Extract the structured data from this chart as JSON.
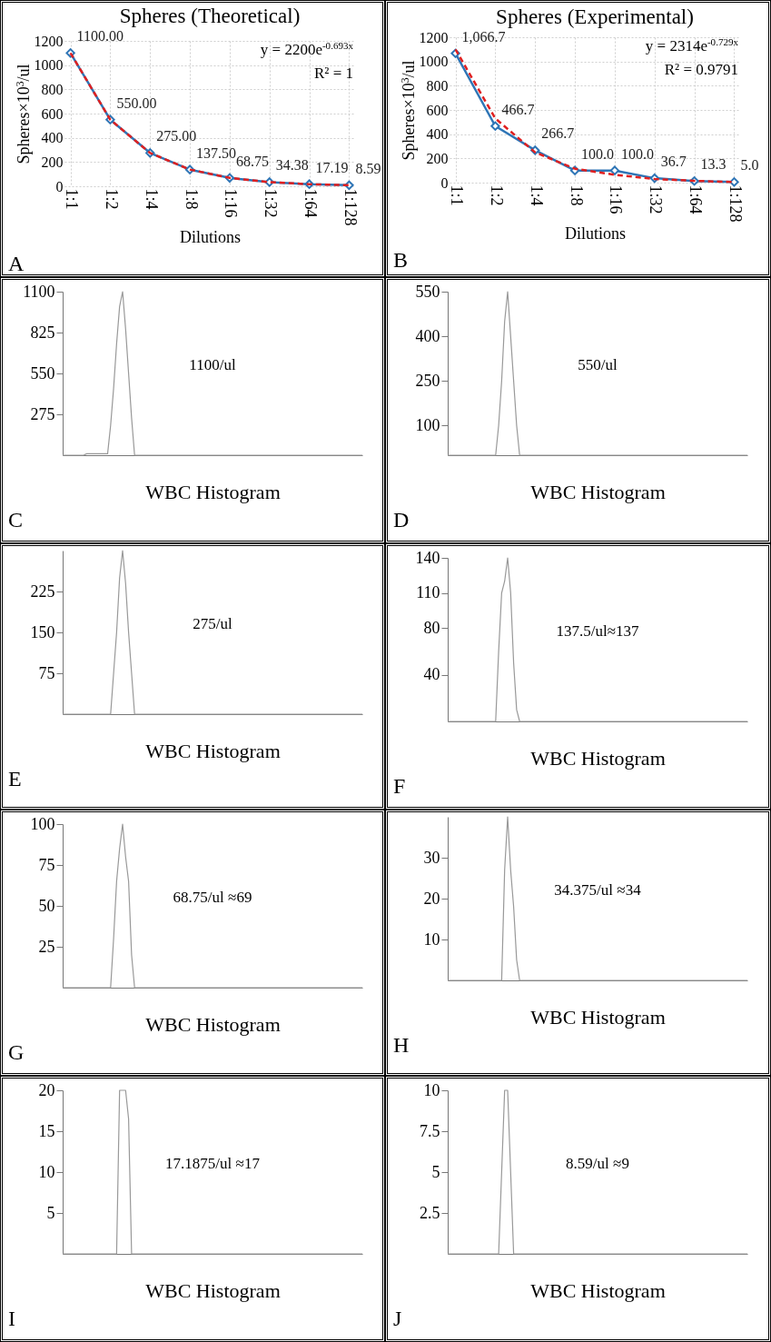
{
  "chart_data": [
    {
      "type": "line",
      "title": "Spheres (Theoretical)",
      "xlabel": "Dilutions",
      "ylabel": "Spheres×10$^{3}$/ul",
      "categories": [
        "1:1",
        "1:2",
        "1:4",
        "1:8",
        "1:16",
        "1:32",
        "1:64",
        "1:128"
      ],
      "ylim": [
        0,
        1200
      ],
      "yticks": [
        0,
        200,
        400,
        600,
        800,
        1000,
        1200
      ],
      "grid": true,
      "series": [
        {
          "color": "#2e75b6",
          "marker": "diamond",
          "line_style": "solid",
          "values": [
            1100,
            550,
            275,
            137.5,
            68.75,
            34.38,
            17.19,
            8.59
          ],
          "value_labels": [
            "1100.00",
            "550.00",
            "275.00",
            "137.50",
            "68.75",
            "34.38",
            "17.19",
            "8.59"
          ]
        },
        {
          "color": "#e02020",
          "marker": "none",
          "line_style": "dashed",
          "values": [
            1100,
            550,
            275,
            138,
            69,
            34,
            17,
            9
          ]
        }
      ],
      "annotations": [
        "y = 2200e$^{-0.693x}$",
        "R² = 1",
        "A"
      ]
    },
    {
      "type": "line",
      "title": "Spheres (Experimental)",
      "xlabel": "Dilutions",
      "ylabel": "Spheres×10$^{3}$/ul",
      "categories": [
        "1:1",
        "1:2",
        "1:4",
        "1:8",
        "1:16",
        "1:32",
        "1:64",
        "1:128"
      ],
      "ylim": [
        0,
        1200
      ],
      "yticks": [
        0,
        200,
        400,
        600,
        800,
        1000,
        1200
      ],
      "grid": true,
      "series": [
        {
          "color": "#2e75b6",
          "marker": "diamond",
          "line_style": "solid",
          "values": [
            1066.7,
            466.7,
            266.7,
            100.0,
            100.0,
            36.7,
            13.3,
            5.0
          ],
          "value_labels": [
            "1,066.7",
            "466.7",
            "266.7",
            "100.0",
            "100.0",
            "36.7",
            "13.3",
            "5.0"
          ]
        },
        {
          "color": "#e02020",
          "marker": "none",
          "line_style": "dashed",
          "values": [
            1100,
            530,
            250,
            115,
            65,
            30,
            15,
            5
          ]
        }
      ],
      "annotations": [
        "y = 2314e$^{-0.729x}$",
        "R² = 0.9791",
        "B"
      ]
    },
    {
      "type": "line",
      "xlabel": "WBC Histogram",
      "categories": [
        null,
        null,
        null,
        null,
        null,
        null,
        null,
        null,
        null,
        null,
        null,
        null,
        null,
        null,
        null,
        null,
        null,
        null,
        null,
        null,
        null,
        null,
        null,
        null,
        null,
        null,
        null,
        null,
        null,
        null,
        null,
        null,
        null,
        null,
        null,
        null,
        null,
        null,
        null,
        null,
        null,
        null,
        null,
        null,
        null,
        null,
        null,
        null,
        null,
        null,
        null,
        null,
        null,
        null,
        null,
        null,
        null,
        null,
        null,
        null,
        null,
        null,
        null,
        null,
        null,
        null,
        null,
        null,
        null,
        null,
        null,
        null,
        null,
        null,
        null,
        null,
        null,
        null,
        null,
        null,
        null,
        null,
        null,
        null,
        null,
        null,
        null,
        null,
        null,
        null,
        null,
        null,
        null,
        null,
        null,
        null,
        null,
        null,
        null,
        null,
        null
      ],
      "ylim": [
        0,
        1100
      ],
      "yticks": [
        275,
        550,
        825,
        1100
      ],
      "tick_labels": "y",
      "series": [
        {
          "color": "#999999",
          "values": [
            0,
            0,
            0,
            0,
            0,
            0,
            0,
            0,
            10,
            10,
            10,
            10,
            10,
            10,
            10,
            10,
            200,
            450,
            750,
            1000,
            1100,
            850,
            550,
            250,
            0,
            0,
            0,
            0,
            0,
            0,
            0,
            0,
            0,
            0,
            0,
            0,
            0,
            0,
            0,
            0,
            0,
            0,
            0,
            0,
            0,
            0,
            0,
            0,
            0,
            0,
            0,
            0,
            0,
            0,
            0,
            0,
            0,
            0,
            0,
            0,
            0,
            0,
            0,
            0,
            0,
            0,
            0,
            0,
            0,
            0,
            0,
            0,
            0,
            0,
            0,
            0,
            0,
            0,
            0,
            0,
            0,
            0,
            0,
            0,
            0,
            0,
            0,
            0,
            0,
            0,
            0,
            0,
            0,
            0,
            0,
            0,
            0,
            0,
            0,
            0,
            0
          ]
        }
      ],
      "annotations": [
        "1100/ul",
        "C"
      ]
    },
    {
      "type": "line",
      "xlabel": "WBC Histogram",
      "categories": [
        null,
        null,
        null,
        null,
        null,
        null,
        null,
        null,
        null,
        null,
        null,
        null,
        null,
        null,
        null,
        null,
        null,
        null,
        null,
        null,
        null,
        null,
        null,
        null,
        null,
        null,
        null,
        null,
        null,
        null,
        null,
        null,
        null,
        null,
        null,
        null,
        null,
        null,
        null,
        null,
        null,
        null,
        null,
        null,
        null,
        null,
        null,
        null,
        null,
        null,
        null,
        null,
        null,
        null,
        null,
        null,
        null,
        null,
        null,
        null,
        null,
        null,
        null,
        null,
        null,
        null,
        null,
        null,
        null,
        null,
        null,
        null,
        null,
        null,
        null,
        null,
        null,
        null,
        null,
        null,
        null,
        null,
        null,
        null,
        null,
        null,
        null,
        null,
        null,
        null,
        null,
        null,
        null,
        null,
        null,
        null,
        null,
        null,
        null,
        null,
        null
      ],
      "ylim": [
        0,
        550
      ],
      "yticks": [
        100,
        250,
        400,
        550
      ],
      "tick_labels": "y",
      "series": [
        {
          "color": "#999999",
          "values": [
            0,
            0,
            0,
            0,
            0,
            0,
            0,
            0,
            0,
            0,
            0,
            0,
            0,
            0,
            0,
            0,
            0,
            100,
            250,
            450,
            550,
            400,
            250,
            100,
            0,
            0,
            0,
            0,
            0,
            0,
            0,
            0,
            0,
            0,
            0,
            0,
            0,
            0,
            0,
            0,
            0,
            0,
            0,
            0,
            0,
            0,
            0,
            0,
            0,
            0,
            0,
            0,
            0,
            0,
            0,
            0,
            0,
            0,
            0,
            0,
            0,
            0,
            0,
            0,
            0,
            0,
            0,
            0,
            0,
            0,
            0,
            0,
            0,
            0,
            0,
            0,
            0,
            0,
            0,
            0,
            0,
            0,
            0,
            0,
            0,
            0,
            0,
            0,
            0,
            0,
            0,
            0,
            0,
            0,
            0,
            0,
            0,
            0,
            0,
            0,
            0
          ]
        }
      ],
      "annotations": [
        "550/ul",
        "D"
      ]
    },
    {
      "type": "line",
      "xlabel": "WBC Histogram",
      "categories": [
        null,
        null,
        null,
        null,
        null,
        null,
        null,
        null,
        null,
        null,
        null,
        null,
        null,
        null,
        null,
        null,
        null,
        null,
        null,
        null,
        null,
        null,
        null,
        null,
        null,
        null,
        null,
        null,
        null,
        null,
        null,
        null,
        null,
        null,
        null,
        null,
        null,
        null,
        null,
        null,
        null,
        null,
        null,
        null,
        null,
        null,
        null,
        null,
        null,
        null,
        null,
        null,
        null,
        null,
        null,
        null,
        null,
        null,
        null,
        null,
        null,
        null,
        null,
        null,
        null,
        null,
        null,
        null,
        null,
        null,
        null,
        null,
        null,
        null,
        null,
        null,
        null,
        null,
        null,
        null,
        null,
        null,
        null,
        null,
        null,
        null,
        null,
        null,
        null,
        null,
        null,
        null,
        null,
        null,
        null,
        null,
        null,
        null,
        null,
        null,
        null
      ],
      "ylim": [
        0,
        300
      ],
      "yticks": [
        75,
        150,
        225
      ],
      "tick_labels": "y",
      "series": [
        {
          "color": "#999999",
          "values": [
            0,
            0,
            0,
            0,
            0,
            0,
            0,
            0,
            0,
            0,
            0,
            0,
            0,
            0,
            0,
            0,
            0,
            75,
            150,
            250,
            300,
            240,
            150,
            75,
            0,
            0,
            0,
            0,
            0,
            0,
            0,
            0,
            0,
            0,
            0,
            0,
            0,
            0,
            0,
            0,
            0,
            0,
            0,
            0,
            0,
            0,
            0,
            0,
            0,
            0,
            0,
            0,
            0,
            0,
            0,
            0,
            0,
            0,
            0,
            0,
            0,
            0,
            0,
            0,
            0,
            0,
            0,
            0,
            0,
            0,
            0,
            0,
            0,
            0,
            0,
            0,
            0,
            0,
            0,
            0,
            0,
            0,
            0,
            0,
            0,
            0,
            0,
            0,
            0,
            0,
            0,
            0,
            0,
            0,
            0,
            0,
            0,
            0,
            0,
            0,
            0
          ]
        }
      ],
      "annotations": [
        "275/ul",
        "E"
      ]
    },
    {
      "type": "line",
      "xlabel": "WBC Histogram",
      "categories": [
        null,
        null,
        null,
        null,
        null,
        null,
        null,
        null,
        null,
        null,
        null,
        null,
        null,
        null,
        null,
        null,
        null,
        null,
        null,
        null,
        null,
        null,
        null,
        null,
        null,
        null,
        null,
        null,
        null,
        null,
        null,
        null,
        null,
        null,
        null,
        null,
        null,
        null,
        null,
        null,
        null,
        null,
        null,
        null,
        null,
        null,
        null,
        null,
        null,
        null,
        null,
        null,
        null,
        null,
        null,
        null,
        null,
        null,
        null,
        null,
        null,
        null,
        null,
        null,
        null,
        null,
        null,
        null,
        null,
        null,
        null,
        null,
        null,
        null,
        null,
        null,
        null,
        null,
        null,
        null,
        null,
        null,
        null,
        null,
        null,
        null,
        null,
        null,
        null,
        null,
        null,
        null,
        null,
        null,
        null,
        null,
        null,
        null,
        null,
        null,
        null
      ],
      "ylim": [
        0,
        140
      ],
      "yticks": [
        40,
        80,
        110,
        140
      ],
      "tick_labels": "y",
      "series": [
        {
          "color": "#999999",
          "values": [
            0,
            0,
            0,
            0,
            0,
            0,
            0,
            0,
            0,
            0,
            0,
            0,
            0,
            0,
            0,
            0,
            0,
            60,
            110,
            120,
            140,
            110,
            50,
            10,
            0,
            0,
            0,
            0,
            0,
            0,
            0,
            0,
            0,
            0,
            0,
            0,
            0,
            0,
            0,
            0,
            0,
            0,
            0,
            0,
            0,
            0,
            0,
            0,
            0,
            0,
            0,
            0,
            0,
            0,
            0,
            0,
            0,
            0,
            0,
            0,
            0,
            0,
            0,
            0,
            0,
            0,
            0,
            0,
            0,
            0,
            0,
            0,
            0,
            0,
            0,
            0,
            0,
            0,
            0,
            0,
            0,
            0,
            0,
            0,
            0,
            0,
            0,
            0,
            0,
            0,
            0,
            0,
            0,
            0,
            0,
            0,
            0,
            0,
            0,
            0,
            0
          ]
        }
      ],
      "annotations": [
        "137.5/ul≈137",
        "F"
      ]
    },
    {
      "type": "line",
      "xlabel": "WBC Histogram",
      "categories": [
        null,
        null,
        null,
        null,
        null,
        null,
        null,
        null,
        null,
        null,
        null,
        null,
        null,
        null,
        null,
        null,
        null,
        null,
        null,
        null,
        null,
        null,
        null,
        null,
        null,
        null,
        null,
        null,
        null,
        null,
        null,
        null,
        null,
        null,
        null,
        null,
        null,
        null,
        null,
        null,
        null,
        null,
        null,
        null,
        null,
        null,
        null,
        null,
        null,
        null,
        null,
        null,
        null,
        null,
        null,
        null,
        null,
        null,
        null,
        null,
        null,
        null,
        null,
        null,
        null,
        null,
        null,
        null,
        null,
        null,
        null,
        null,
        null,
        null,
        null,
        null,
        null,
        null,
        null,
        null,
        null,
        null,
        null,
        null,
        null,
        null,
        null,
        null,
        null,
        null,
        null,
        null,
        null,
        null,
        null,
        null,
        null,
        null,
        null,
        null,
        null
      ],
      "ylim": [
        0,
        100
      ],
      "yticks": [
        25,
        50,
        75,
        100
      ],
      "tick_labels": "y",
      "series": [
        {
          "color": "#999999",
          "values": [
            0,
            0,
            0,
            0,
            0,
            0,
            0,
            0,
            0,
            0,
            0,
            0,
            0,
            0,
            0,
            0,
            0,
            30,
            65,
            85,
            100,
            80,
            65,
            20,
            0,
            0,
            0,
            0,
            0,
            0,
            0,
            0,
            0,
            0,
            0,
            0,
            0,
            0,
            0,
            0,
            0,
            0,
            0,
            0,
            0,
            0,
            0,
            0,
            0,
            0,
            0,
            0,
            0,
            0,
            0,
            0,
            0,
            0,
            0,
            0,
            0,
            0,
            0,
            0,
            0,
            0,
            0,
            0,
            0,
            0,
            0,
            0,
            0,
            0,
            0,
            0,
            0,
            0,
            0,
            0,
            0,
            0,
            0,
            0,
            0,
            0,
            0,
            0,
            0,
            0,
            0,
            0,
            0,
            0,
            0,
            0,
            0,
            0,
            0,
            0,
            0
          ]
        }
      ],
      "annotations": [
        "68.75/ul ≈69",
        "G"
      ]
    },
    {
      "type": "line",
      "xlabel": "WBC Histogram",
      "categories": [
        null,
        null,
        null,
        null,
        null,
        null,
        null,
        null,
        null,
        null,
        null,
        null,
        null,
        null,
        null,
        null,
        null,
        null,
        null,
        null,
        null,
        null,
        null,
        null,
        null,
        null,
        null,
        null,
        null,
        null,
        null,
        null,
        null,
        null,
        null,
        null,
        null,
        null,
        null,
        null,
        null,
        null,
        null,
        null,
        null,
        null,
        null,
        null,
        null,
        null,
        null,
        null,
        null,
        null,
        null,
        null,
        null,
        null,
        null,
        null,
        null,
        null,
        null,
        null,
        null,
        null,
        null,
        null,
        null,
        null,
        null,
        null,
        null,
        null,
        null,
        null,
        null,
        null,
        null,
        null,
        null,
        null,
        null,
        null,
        null,
        null,
        null,
        null,
        null,
        null,
        null,
        null,
        null,
        null,
        null,
        null,
        null,
        null,
        null,
        null,
        null
      ],
      "ylim": [
        0,
        40
      ],
      "yticks": [
        10,
        20,
        30
      ],
      "tick_labels": "y",
      "series": [
        {
          "color": "#999999",
          "values": [
            0,
            0,
            0,
            0,
            0,
            0,
            0,
            0,
            0,
            0,
            0,
            0,
            0,
            0,
            0,
            0,
            0,
            0,
            0,
            27,
            40,
            27,
            18,
            5,
            0,
            0,
            0,
            0,
            0,
            0,
            0,
            0,
            0,
            0,
            0,
            0,
            0,
            0,
            0,
            0,
            0,
            0,
            0,
            0,
            0,
            0,
            0,
            0,
            0,
            0,
            0,
            0,
            0,
            0,
            0,
            0,
            0,
            0,
            0,
            0,
            0,
            0,
            0,
            0,
            0,
            0,
            0,
            0,
            0,
            0,
            0,
            0,
            0,
            0,
            0,
            0,
            0,
            0,
            0,
            0,
            0,
            0,
            0,
            0,
            0,
            0,
            0,
            0,
            0,
            0,
            0,
            0,
            0,
            0,
            0,
            0,
            0,
            0,
            0,
            0,
            0
          ]
        }
      ],
      "annotations": [
        "34.375/ul ≈34",
        "H"
      ]
    },
    {
      "type": "line",
      "xlabel": "WBC Histogram",
      "categories": [
        null,
        null,
        null,
        null,
        null,
        null,
        null,
        null,
        null,
        null,
        null,
        null,
        null,
        null,
        null,
        null,
        null,
        null,
        null,
        null,
        null,
        null,
        null,
        null,
        null,
        null,
        null,
        null,
        null,
        null,
        null,
        null,
        null,
        null,
        null,
        null,
        null,
        null,
        null,
        null,
        null,
        null,
        null,
        null,
        null,
        null,
        null,
        null,
        null,
        null,
        null,
        null,
        null,
        null,
        null,
        null,
        null,
        null,
        null,
        null,
        null,
        null,
        null,
        null,
        null,
        null,
        null,
        null,
        null,
        null,
        null,
        null,
        null,
        null,
        null,
        null,
        null,
        null,
        null,
        null,
        null,
        null,
        null,
        null,
        null,
        null,
        null,
        null,
        null,
        null,
        null,
        null,
        null,
        null,
        null,
        null,
        null,
        null,
        null,
        null,
        null
      ],
      "ylim": [
        0,
        20
      ],
      "yticks": [
        5,
        10,
        15,
        20
      ],
      "tick_labels": "y",
      "series": [
        {
          "color": "#999999",
          "values": [
            0,
            0,
            0,
            0,
            0,
            0,
            0,
            0,
            0,
            0,
            0,
            0,
            0,
            0,
            0,
            0,
            0,
            0,
            0,
            20,
            20,
            20,
            16.5,
            0,
            0,
            0,
            0,
            0,
            0,
            0,
            0,
            0,
            0,
            0,
            0,
            0,
            0,
            0,
            0,
            0,
            0,
            0,
            0,
            0,
            0,
            0,
            0,
            0,
            0,
            0,
            0,
            0,
            0,
            0,
            0,
            0,
            0,
            0,
            0,
            0,
            0,
            0,
            0,
            0,
            0,
            0,
            0,
            0,
            0,
            0,
            0,
            0,
            0,
            0,
            0,
            0,
            0,
            0,
            0,
            0,
            0,
            0,
            0,
            0,
            0,
            0,
            0,
            0,
            0,
            0,
            0,
            0,
            0,
            0,
            0,
            0,
            0,
            0,
            0,
            0,
            0
          ]
        }
      ],
      "annotations": [
        "17.1875/ul ≈17",
        "I"
      ]
    },
    {
      "type": "line",
      "xlabel": "WBC Histogram",
      "categories": [
        null,
        null,
        null,
        null,
        null,
        null,
        null,
        null,
        null,
        null,
        null,
        null,
        null,
        null,
        null,
        null,
        null,
        null,
        null,
        null,
        null,
        null,
        null,
        null,
        null,
        null,
        null,
        null,
        null,
        null,
        null,
        null,
        null,
        null,
        null,
        null,
        null,
        null,
        null,
        null,
        null,
        null,
        null,
        null,
        null,
        null,
        null,
        null,
        null,
        null,
        null,
        null,
        null,
        null,
        null,
        null,
        null,
        null,
        null,
        null,
        null,
        null,
        null,
        null,
        null,
        null,
        null,
        null,
        null,
        null,
        null,
        null,
        null,
        null,
        null,
        null,
        null,
        null,
        null,
        null,
        null,
        null,
        null,
        null,
        null,
        null,
        null,
        null,
        null,
        null,
        null,
        null,
        null,
        null,
        null,
        null,
        null,
        null,
        null,
        null,
        null
      ],
      "ylim": [
        0,
        10
      ],
      "yticks": [
        2.5,
        5,
        7.5,
        10
      ],
      "tick_labels": "y",
      "series": [
        {
          "color": "#999999",
          "values": [
            0,
            0,
            0,
            0,
            0,
            0,
            0,
            0,
            0,
            0,
            0,
            0,
            0,
            0,
            0,
            0,
            0,
            0,
            5,
            10,
            10,
            5,
            0,
            0,
            0,
            0,
            0,
            0,
            0,
            0,
            0,
            0,
            0,
            0,
            0,
            0,
            0,
            0,
            0,
            0,
            0,
            0,
            0,
            0,
            0,
            0,
            0,
            0,
            0,
            0,
            0,
            0,
            0,
            0,
            0,
            0,
            0,
            0,
            0,
            0,
            0,
            0,
            0,
            0,
            0,
            0,
            0,
            0,
            0,
            0,
            0,
            0,
            0,
            0,
            0,
            0,
            0,
            0,
            0,
            0,
            0,
            0,
            0,
            0,
            0,
            0,
            0,
            0,
            0,
            0,
            0,
            0,
            0,
            0,
            0,
            0,
            0,
            0,
            0,
            0,
            0
          ]
        }
      ],
      "annotations": [
        "8.59/ul ≈9",
        "J"
      ]
    }
  ]
}
